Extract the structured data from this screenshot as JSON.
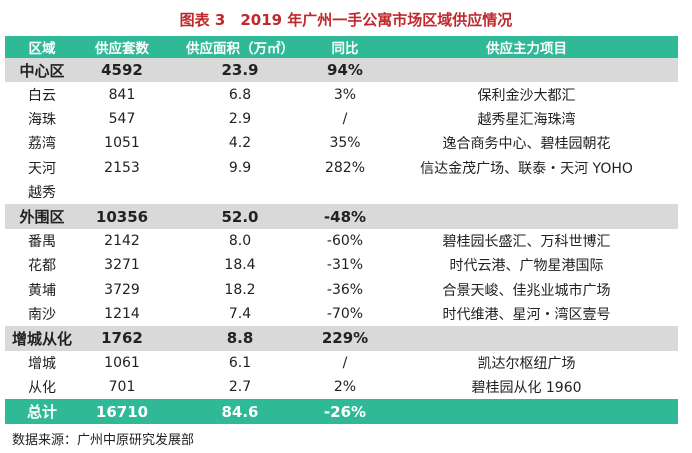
{
  "title": "图表 3　2019 年广州一手公寓市场区域供应情况",
  "headers": [
    "区域",
    "供应套数",
    "供应面积（万㎡）",
    "同比",
    "供应主力项目"
  ],
  "rows": [
    [
      "中心区",
      "4592",
      "23.9",
      "94%",
      ""
    ],
    [
      "白云",
      "841",
      "6.8",
      "3%",
      "保利金沙大都汇"
    ],
    [
      "海珠",
      "547",
      "2.9",
      "/",
      "越秀星汇海珠湾"
    ],
    [
      "荔湾",
      "1051",
      "4.2",
      "35%",
      "逸合商务中心、碧桂园朝花"
    ],
    [
      "天河",
      "2153",
      "9.9",
      "282%",
      "信达金茂广场、联泰・天河 YOHO"
    ],
    [
      "越秀",
      "",
      "",
      "",
      ""
    ],
    [
      "外围区",
      "10356",
      "52.0",
      "-48%",
      ""
    ],
    [
      "番禺",
      "2142",
      "8.0",
      "-60%",
      "碧桂园长盛汇、万科世博汇"
    ],
    [
      "花都",
      "3271",
      "18.4",
      "-31%",
      "时代云港、广物星港国际"
    ],
    [
      "黄埔",
      "3729",
      "18.2",
      "-36%",
      "合景天峻、佳兆业城市广场"
    ],
    [
      "南沙",
      "1214",
      "7.4",
      "-70%",
      "时代维港、星河・湾区壹号"
    ],
    [
      "增城从化",
      "1762",
      "8.8",
      "229%",
      ""
    ],
    [
      "增城",
      "1061",
      "6.1",
      "/",
      "凯达尔枢纽广场"
    ],
    [
      "从化",
      "701",
      "2.7",
      "2%",
      "碧桂园从化 1960"
    ],
    [
      "总计",
      "16710",
      "84.6",
      "-26%",
      ""
    ]
  ],
  "source": "数据来源：广州中原研究发展部"
}
